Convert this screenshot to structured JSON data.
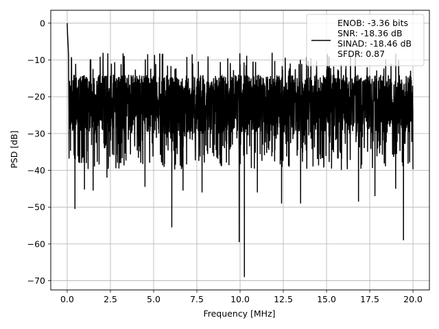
{
  "chart_data": {
    "type": "line",
    "title": "",
    "xlabel": "Frequency [MHz]",
    "ylabel": "PSD [dB]",
    "xlim": [
      -0.95,
      20.95
    ],
    "ylim": [
      -72.5,
      3.5
    ],
    "x_ticks": [
      0.0,
      2.5,
      5.0,
      7.5,
      10.0,
      12.5,
      15.0,
      17.5,
      20.0
    ],
    "x_tick_labels": [
      "0.0",
      "2.5",
      "5.0",
      "7.5",
      "10.0",
      "12.5",
      "15.0",
      "17.5",
      "20.0"
    ],
    "y_ticks": [
      0,
      -10,
      -20,
      -30,
      -40,
      -50,
      -60,
      -70
    ],
    "y_tick_labels": [
      "0",
      "−10",
      "−20",
      "−30",
      "−40",
      "−50",
      "−60",
      "−70"
    ],
    "grid": true,
    "legend_position": "upper right",
    "series": [
      {
        "color": "#000000",
        "description": "noise-like PSD, peak 0 dB at 0 MHz, mostly between about -30 and -12 dB, deep nulls",
        "peaks": [
          [
            0.0,
            0.0
          ],
          [
            0.02,
            -3.0
          ],
          [
            0.05,
            -5.5
          ],
          [
            0.08,
            -9.0
          ]
        ],
        "nulls": [
          [
            0.45,
            -50.5
          ],
          [
            1.0,
            -45.2
          ],
          [
            1.5,
            -45.5
          ],
          [
            2.3,
            -42.0
          ],
          [
            4.5,
            -44.5
          ],
          [
            6.05,
            -55.5
          ],
          [
            6.7,
            -45.5
          ],
          [
            7.8,
            -46.0
          ],
          [
            9.95,
            -59.5
          ],
          [
            10.25,
            -69.0
          ],
          [
            11.0,
            -46.0
          ],
          [
            12.4,
            -49.0
          ],
          [
            13.5,
            -49.0
          ],
          [
            16.85,
            -48.5
          ],
          [
            17.8,
            -47.0
          ],
          [
            19.0,
            -45.0
          ],
          [
            19.45,
            -59.0
          ]
        ],
        "noise_floor_db": [
          -30,
          -12
        ]
      }
    ],
    "legend_lines": [
      "ENOB: -3.36 bits",
      "SNR: -18.36 dB",
      "SINAD: -18.46 dB",
      "SFDR: 0.87"
    ]
  }
}
